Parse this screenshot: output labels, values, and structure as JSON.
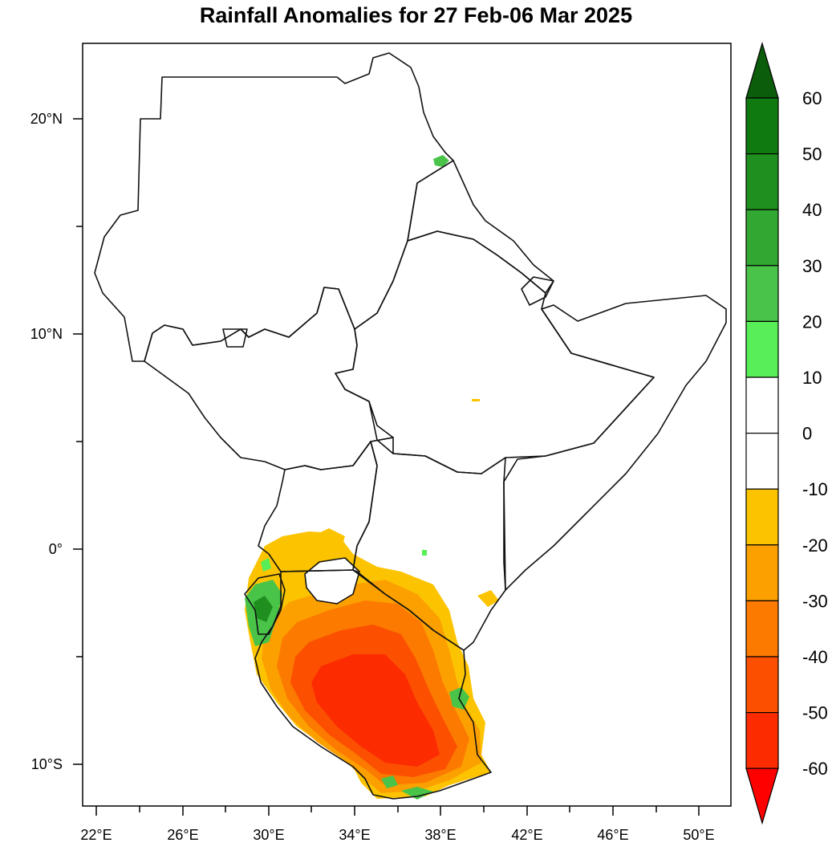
{
  "title": "Rainfall Anomalies for 27 Feb-06 Mar 2025",
  "lon_labels": [
    "22°E",
    "26°E",
    "30°E",
    "34°E",
    "38°E",
    "42°E",
    "46°E",
    "50°E"
  ],
  "lat_labels": [
    "20°N",
    "10°N",
    "0°",
    "10°S"
  ],
  "colorbar": {
    "labels": [
      "60",
      "50",
      "40",
      "30",
      "20",
      "10",
      "0",
      "-10",
      "-20",
      "-30",
      "-40",
      "-50",
      "-60"
    ],
    "colors": [
      "#0b5c0b",
      "#0f7a0f",
      "#1f8f1f",
      "#32a832",
      "#49c449",
      "#57ee57",
      "#ffffff",
      "#ffffff",
      "#fcc400",
      "#fca000",
      "#fc7a00",
      "#fc5000",
      "#fc2c00",
      "#ff0000"
    ],
    "unit": ""
  },
  "legend_colors": {
    "pos10_20": "#57ee57",
    "pos20_30": "#49c449",
    "pos30_40": "#32a832",
    "pos40_50": "#1f8f1f",
    "neg10_20": "#fcc400",
    "neg20_30": "#fca000",
    "neg30_40": "#fc7a00",
    "neg40_50": "#fc5000",
    "neg50_60": "#fc2c00"
  }
}
